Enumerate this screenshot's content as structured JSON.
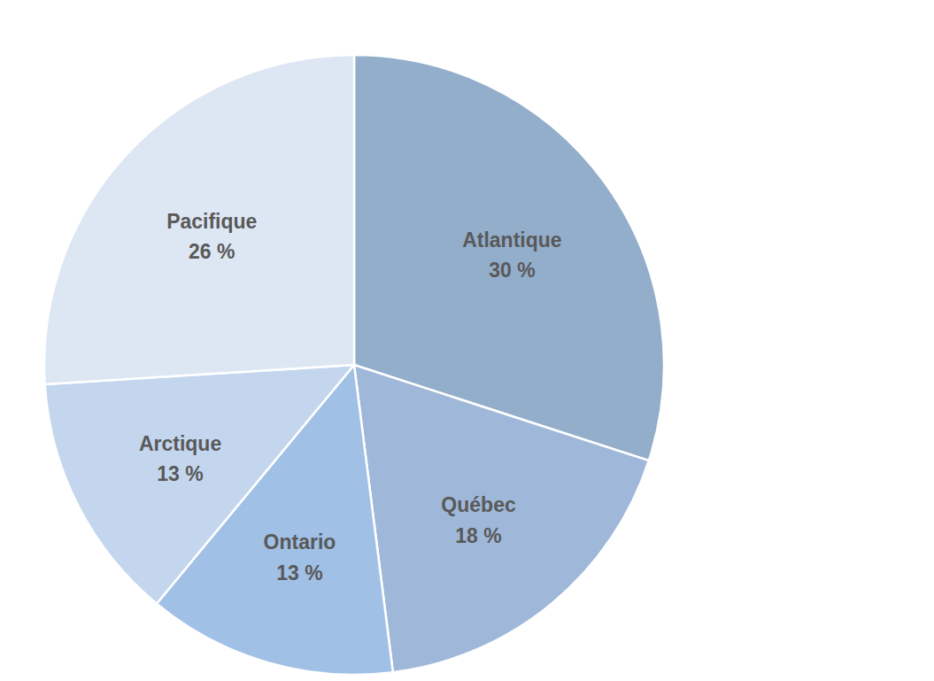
{
  "chart_data": {
    "type": "pie",
    "categories": [
      "Atlantique",
      "Québec",
      "Ontario",
      "Arctique",
      "Pacifique"
    ],
    "values": [
      30,
      18,
      13,
      13,
      26
    ],
    "value_labels": [
      "30 %",
      "18 %",
      "13 %",
      "13 %",
      "26 %"
    ],
    "colors": [
      "#93aecb",
      "#9fb8d9",
      "#a1c0e6",
      "#c4d6ee",
      "#dde7f4"
    ],
    "data_labels": true
  }
}
